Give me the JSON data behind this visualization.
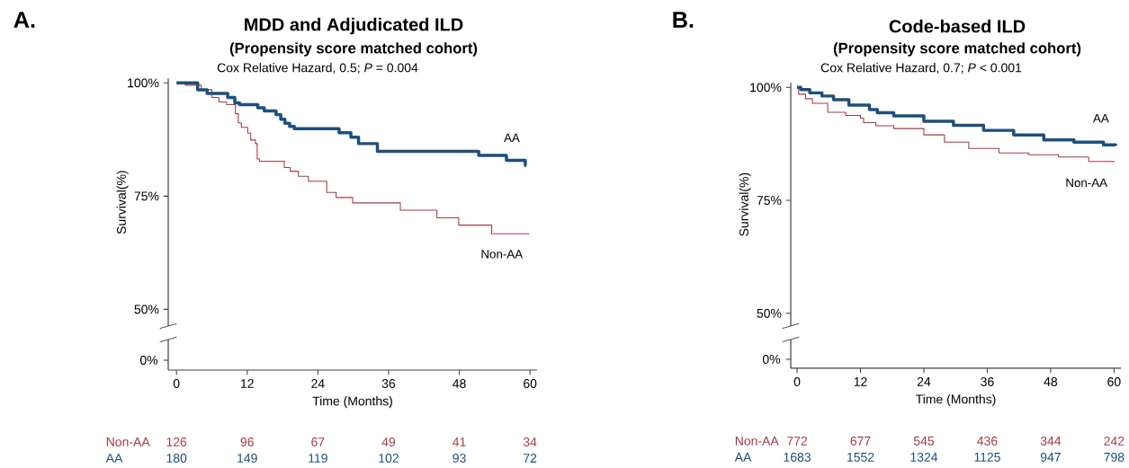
{
  "chart_data": [
    {
      "type": "step",
      "title": "MDD and Adjudicated ILD",
      "subtitle": "(Propensity score matched cohort)",
      "xlabel": "Time (Months)",
      "ylabel": "Survival(%)",
      "xlim": [
        -1.4,
        61.2
      ],
      "ylim": [
        46.3,
        101
      ],
      "xticks": [
        0,
        12,
        24,
        36,
        48,
        60
      ],
      "yticks": [
        {
          "value": 50,
          "label": "50%"
        },
        {
          "value": 75,
          "label": "75%"
        },
        {
          "value": 100,
          "label": "100%"
        }
      ],
      "series": [
        {
          "name": "Non-AA",
          "color": "#a63a43",
          "x": [
            0,
            1.5,
            4.2,
            6.0,
            7.2,
            8.5,
            10.0,
            10.5,
            11.0,
            12.1,
            12.6,
            13.4,
            13.7,
            14.1,
            18.3,
            19.3,
            20.7,
            22.4,
            25.5,
            27.1,
            29.9,
            38.0,
            44.2,
            47.9,
            53.5,
            59.9
          ],
          "values": [
            100,
            99.5,
            98.5,
            96.8,
            95.8,
            95.2,
            93.2,
            91.2,
            90.2,
            88.9,
            87.4,
            86.6,
            83.2,
            82.7,
            81.3,
            80.5,
            79.4,
            78.3,
            75.8,
            74.7,
            73.5,
            71.9,
            70.2,
            68.6,
            66.7,
            66.7
          ]
        },
        {
          "name": "AA",
          "color": "#1c4f7c",
          "x": [
            0,
            3.6,
            5.2,
            8.7,
            9.9,
            10.7,
            13.8,
            14.9,
            16.9,
            17.7,
            18.4,
            19.2,
            20.0,
            27.6,
            29.6,
            30.9,
            34.1,
            51.3,
            56.0,
            59.2,
            59.4
          ],
          "values": [
            100,
            98.5,
            97.7,
            96.8,
            95.6,
            95.2,
            94.5,
            93.8,
            93.0,
            92.0,
            91.1,
            90.4,
            89.9,
            89.0,
            88.0,
            86.6,
            84.9,
            84.0,
            82.9,
            81.8,
            81.8
          ]
        }
      ],
      "annotations": [
        "A.",
        "Cox Relative Hazard, 0.5; *P* = 0.004",
        "0%",
        "126",
        "96",
        "67",
        "49",
        "41",
        "34",
        "180",
        "149",
        "119",
        "102",
        "93",
        "72"
      ]
    },
    {
      "type": "step",
      "title": "Code-based ILD",
      "subtitle": "(Propensity score matched cohort)",
      "xlabel": "Time (Months)",
      "ylabel": "Survival(%)",
      "xlim": [
        -1.2,
        61.3
      ],
      "ylim": [
        47.2,
        101
      ],
      "xticks": [
        0,
        12,
        24,
        36,
        48,
        60
      ],
      "yticks": [
        {
          "value": 50,
          "label": "50%"
        },
        {
          "value": 75,
          "label": "75%"
        },
        {
          "value": 100,
          "label": "100%"
        }
      ],
      "series": [
        {
          "name": "Non-AA",
          "color": "#a63a43",
          "x": [
            0,
            0.3,
            1.6,
            2.9,
            5.8,
            9.2,
            12.0,
            12.6,
            14.9,
            18.3,
            24.0,
            27.9,
            32.5,
            38.2,
            43.8,
            49.5,
            55.2,
            60.0
          ],
          "values": [
            100,
            98.5,
            97.5,
            96.5,
            94.5,
            93.8,
            93.2,
            92.2,
            91.5,
            90.9,
            89.5,
            87.9,
            86.5,
            85.5,
            85.1,
            84.6,
            83.6,
            83.4
          ]
        },
        {
          "name": "AA",
          "color": "#1c4f7c",
          "x": [
            0,
            0.7,
            2.4,
            4.7,
            6.9,
            9.8,
            13.7,
            15.2,
            18.3,
            24.0,
            29.6,
            35.3,
            41.0,
            46.7,
            52.4,
            58.0,
            60.3
          ],
          "values": [
            100,
            99.5,
            98.8,
            98.1,
            97.3,
            96.1,
            95.1,
            94.4,
            93.7,
            92.5,
            91.6,
            90.5,
            89.5,
            88.4,
            87.9,
            87.3,
            87.1
          ]
        }
      ],
      "annotations": [
        "B.",
        "Cox Relative Hazard, 0.7; *P* < 0.001",
        "0%",
        "772",
        "677",
        "545",
        "436",
        "344",
        "242",
        "1683",
        "1552",
        "1324",
        "1125",
        "947",
        "798"
      ]
    }
  ]
}
